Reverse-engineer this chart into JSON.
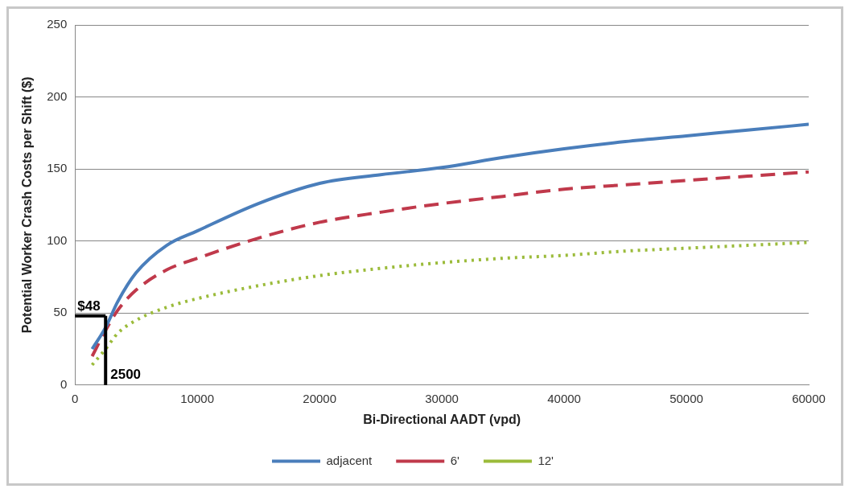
{
  "chart_data": {
    "type": "line",
    "xlabel": "Bi-Directional AADT (vpd)",
    "ylabel": "Potential Worker Crash Costs per Shift ($)",
    "xlim": [
      0,
      60000
    ],
    "xticks": [
      0,
      10000,
      20000,
      30000,
      40000,
      50000,
      60000
    ],
    "ylim": [
      0,
      250
    ],
    "yticks": [
      0,
      50,
      100,
      150,
      200,
      250
    ],
    "grid": "y",
    "legend": "bottom",
    "marker": "none",
    "series": [
      {
        "name": "adjacent",
        "color": "#4a7ebb",
        "line_style": "solid",
        "x": [
          1400,
          2500,
          3500,
          5000,
          7500,
          10000,
          15000,
          20000,
          25000,
          30000,
          35000,
          40000,
          45000,
          50000,
          55000,
          60000
        ],
        "values": [
          25,
          40,
          58,
          78,
          97,
          107,
          126,
          140,
          146,
          151,
          158,
          164,
          169,
          173,
          177,
          181
        ]
      },
      {
        "name": "6'",
        "color": "#c0394b",
        "line_style": "dashed",
        "x": [
          1400,
          2500,
          3500,
          5000,
          7500,
          10000,
          15000,
          20000,
          25000,
          30000,
          35000,
          40000,
          45000,
          50000,
          55000,
          60000
        ],
        "values": [
          20,
          38,
          52,
          66,
          80,
          88,
          102,
          113,
          120,
          126,
          131,
          136,
          139,
          142,
          145,
          148
        ]
      },
      {
        "name": "12'",
        "color": "#9bbb3a",
        "line_style": "dotted",
        "x": [
          1400,
          2500,
          3500,
          5000,
          7500,
          10000,
          15000,
          20000,
          25000,
          30000,
          35000,
          40000,
          45000,
          50000,
          55000,
          60000
        ],
        "values": [
          14,
          25,
          36,
          45,
          54,
          60,
          69,
          76,
          81,
          85,
          88,
          90,
          93,
          95,
          97,
          99
        ]
      }
    ],
    "ref_lines": [
      {
        "axis": "y",
        "value": 48,
        "label": "$48",
        "color": "#000000"
      },
      {
        "axis": "x",
        "value": 2500,
        "label": "2500",
        "color": "#000000"
      }
    ]
  }
}
